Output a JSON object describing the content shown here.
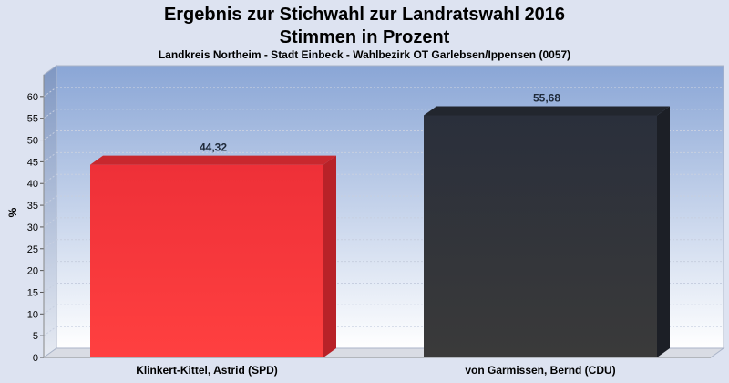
{
  "chart_data": {
    "type": "bar",
    "title": "Ergebnis zur Stichwahl zur Landratswahl 2016",
    "title_line2": "Stimmen in Prozent",
    "subtitle": "Landkreis Northeim - Stadt Einbeck - Wahlbezirk OT Garlebsen/Ippensen (0057)",
    "ylabel": "%",
    "xlabel": "",
    "ylim": [
      0,
      65
    ],
    "yticks": [
      0,
      5,
      10,
      15,
      20,
      25,
      30,
      35,
      40,
      45,
      50,
      55,
      60
    ],
    "grid": true,
    "categories": [
      "Klinkert-Kittel, Astrid (SPD)",
      "von Garmissen, Bernd (CDU)"
    ],
    "values": [
      44.32,
      55.68
    ],
    "value_labels": [
      "44,32",
      "55,68"
    ],
    "colors": [
      "#ff3333",
      "#2b2f3a"
    ]
  }
}
